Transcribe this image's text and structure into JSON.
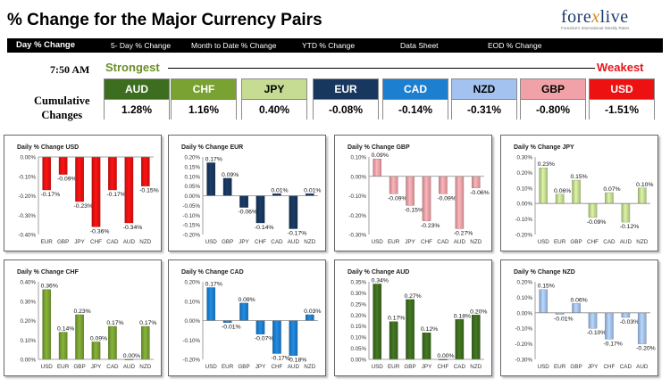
{
  "header": {
    "title": "% Change for the Major Currency Pairs",
    "logo_main": "forexlive",
    "logo_tag": "Forexlive's International Weekly Rates"
  },
  "tabs": [
    {
      "label": "Day % Change",
      "active": true
    },
    {
      "label": "5- Day % Change",
      "active": false
    },
    {
      "label": "Month to Date % Change",
      "active": false
    },
    {
      "label": "YTD % Change",
      "active": false
    },
    {
      "label": "Data Sheet",
      "active": false
    },
    {
      "label": "EOD % Change",
      "active": false
    }
  ],
  "summary": {
    "time": "7:50 AM",
    "strongest_label": "Strongest",
    "weakest_label": "Weakest",
    "cumulative_label": [
      "Cumulative",
      "Changes"
    ],
    "currencies": [
      {
        "name": "AUD",
        "value": "1.28%",
        "color": "#3d6d1f",
        "text_color": "#ffffff"
      },
      {
        "name": "CHF",
        "value": "1.16%",
        "color": "#7aa232",
        "text_color": "#ffffff"
      },
      {
        "name": "JPY",
        "value": "0.40%",
        "color": "#c5dc92",
        "text_color": "#000000"
      },
      {
        "name": "EUR",
        "value": "-0.08%",
        "color": "#17375e",
        "text_color": "#ffffff"
      },
      {
        "name": "CAD",
        "value": "-0.14%",
        "color": "#1c7fd0",
        "text_color": "#ffffff"
      },
      {
        "name": "NZD",
        "value": "-0.31%",
        "color": "#a4c2f0",
        "text_color": "#000000"
      },
      {
        "name": "GBP",
        "value": "-0.80%",
        "color": "#f0a2a8",
        "text_color": "#000000"
      },
      {
        "name": "USD",
        "value": "-1.51%",
        "color": "#ee1111",
        "text_color": "#ffffff"
      }
    ]
  },
  "chart_data": [
    {
      "type": "bar",
      "title": "Daily % Change USD",
      "color": "#ee1111",
      "categories": [
        "EUR",
        "GBP",
        "JPY",
        "CHF",
        "CAD",
        "AUD",
        "NZD"
      ],
      "values": [
        -0.17,
        -0.09,
        -0.23,
        -0.36,
        -0.17,
        -0.34,
        -0.15
      ],
      "labels": [
        "-0.17%",
        "-0.09%",
        "-0.23%",
        "-0.36%",
        "-0.17%",
        "-0.34%",
        "-0.15%"
      ],
      "ylim": [
        -0.4,
        0.0
      ],
      "ticks": [
        0.0,
        -0.1,
        -0.2,
        -0.3,
        -0.4
      ],
      "tick_labels": [
        "0.00%",
        "-0.10%",
        "-0.20%",
        "-0.30%",
        "-0.40%"
      ]
    },
    {
      "type": "bar",
      "title": "Daily % Change EUR",
      "color": "#17375e",
      "categories": [
        "USD",
        "GBP",
        "JPY",
        "CHF",
        "CAD",
        "AUD",
        "NZD"
      ],
      "values": [
        0.17,
        0.09,
        -0.06,
        -0.14,
        0.01,
        -0.17,
        0.01
      ],
      "labels": [
        "0.17%",
        "0.09%",
        "-0.06%",
        "-0.14%",
        "0.01%",
        "-0.17%",
        "0.01%"
      ],
      "ylim": [
        -0.2,
        0.2
      ],
      "ticks": [
        0.2,
        0.15,
        0.1,
        0.05,
        0.0,
        -0.05,
        -0.1,
        -0.15,
        -0.2
      ],
      "tick_labels": [
        "0.20%",
        "0.15%",
        "0.10%",
        "0.05%",
        "0.00%",
        "-0.05%",
        "-0.10%",
        "-0.15%",
        "-0.20%"
      ]
    },
    {
      "type": "bar",
      "title": "Daily % Change GBP",
      "color": "#f0a2a8",
      "categories": [
        "USD",
        "EUR",
        "JPY",
        "CHF",
        "CAD",
        "AUD",
        "NZD"
      ],
      "values": [
        0.09,
        -0.09,
        -0.15,
        -0.23,
        -0.09,
        -0.27,
        -0.06
      ],
      "labels": [
        "0.09%",
        "-0.09%",
        "-0.15%",
        "-0.23%",
        "-0.09%",
        "-0.27%",
        "-0.06%"
      ],
      "ylim": [
        -0.3,
        0.1
      ],
      "ticks": [
        0.1,
        0.0,
        -0.1,
        -0.2,
        -0.3
      ],
      "tick_labels": [
        "0.10%",
        "0.00%",
        "-0.10%",
        "-0.20%",
        "-0.30%"
      ]
    },
    {
      "type": "bar",
      "title": "Daily % Change JPY",
      "color": "#c5dc92",
      "categories": [
        "USD",
        "EUR",
        "GBP",
        "CHF",
        "CAD",
        "AUD",
        "NZD"
      ],
      "values": [
        0.23,
        0.06,
        0.15,
        -0.09,
        0.07,
        -0.12,
        0.1
      ],
      "labels": [
        "0.23%",
        "0.06%",
        "0.15%",
        "-0.09%",
        "0.07%",
        "-0.12%",
        "0.10%"
      ],
      "ylim": [
        -0.2,
        0.3
      ],
      "ticks": [
        0.3,
        0.2,
        0.1,
        0.0,
        -0.1,
        -0.2
      ],
      "tick_labels": [
        "0.30%",
        "0.20%",
        "0.10%",
        "0.00%",
        "-0.10%",
        "-0.20%"
      ]
    },
    {
      "type": "bar",
      "title": "Daily % Change CHF",
      "color": "#7aa232",
      "categories": [
        "USD",
        "EUR",
        "GBP",
        "JPY",
        "CAD",
        "AUD",
        "NZD"
      ],
      "values": [
        0.36,
        0.14,
        0.23,
        0.09,
        0.17,
        0.0,
        0.17
      ],
      "labels": [
        "0.36%",
        "0.14%",
        "0.23%",
        "0.09%",
        "0.17%",
        "0.00%",
        "0.17%"
      ],
      "ylim": [
        0.0,
        0.4
      ],
      "ticks": [
        0.4,
        0.3,
        0.2,
        0.1,
        0.0
      ],
      "tick_labels": [
        "0.40%",
        "0.30%",
        "0.20%",
        "0.10%",
        "0.00%"
      ]
    },
    {
      "type": "bar",
      "title": "Daily % Change CAD",
      "color": "#1c7fd0",
      "categories": [
        "USD",
        "EUR",
        "GBP",
        "JPY",
        "CHF",
        "AUD",
        "NZD"
      ],
      "values": [
        0.17,
        -0.01,
        0.09,
        -0.07,
        -0.17,
        -0.18,
        0.03
      ],
      "labels": [
        "0.17%",
        "-0.01%",
        "0.09%",
        "-0.07%",
        "-0.17%",
        "-0.18%",
        "0.03%"
      ],
      "ylim": [
        -0.2,
        0.2
      ],
      "ticks": [
        0.2,
        0.1,
        0.0,
        -0.1,
        -0.2
      ],
      "tick_labels": [
        "0.20%",
        "0.10%",
        "0.00%",
        "-0.10%",
        "-0.20%"
      ]
    },
    {
      "type": "bar",
      "title": "Daily % Change AUD",
      "color": "#3d6d1f",
      "categories": [
        "USD",
        "EUR",
        "GBP",
        "JPY",
        "CHF",
        "CAD",
        "NZD"
      ],
      "values": [
        0.34,
        0.17,
        0.27,
        0.12,
        0.0,
        0.18,
        0.2
      ],
      "labels": [
        "0.34%",
        "0.17%",
        "0.27%",
        "0.12%",
        "0.00%",
        "0.18%",
        "0.20%"
      ],
      "ylim": [
        0.0,
        0.35
      ],
      "ticks": [
        0.35,
        0.3,
        0.25,
        0.2,
        0.15,
        0.1,
        0.05,
        0.0
      ],
      "tick_labels": [
        "0.35%",
        "0.30%",
        "0.25%",
        "0.20%",
        "0.15%",
        "0.10%",
        "0.05%",
        "0.00%"
      ]
    },
    {
      "type": "bar",
      "title": "Daily % Change NZD",
      "color": "#a4c2f0",
      "categories": [
        "USD",
        "EUR",
        "GBP",
        "JPY",
        "CHF",
        "CAD",
        "AUD"
      ],
      "values": [
        0.15,
        -0.01,
        0.06,
        -0.1,
        -0.17,
        -0.03,
        -0.2
      ],
      "labels": [
        "0.15%",
        "-0.01%",
        "0.06%",
        "-0.10%",
        "-0.17%",
        "-0.03%",
        "-0.20%"
      ],
      "ylim": [
        -0.3,
        0.2
      ],
      "ticks": [
        0.2,
        0.1,
        0.0,
        -0.1,
        -0.2,
        -0.3
      ],
      "tick_labels": [
        "0.20%",
        "0.10%",
        "0.00%",
        "-0.10%",
        "-0.20%",
        "-0.30%"
      ]
    }
  ]
}
